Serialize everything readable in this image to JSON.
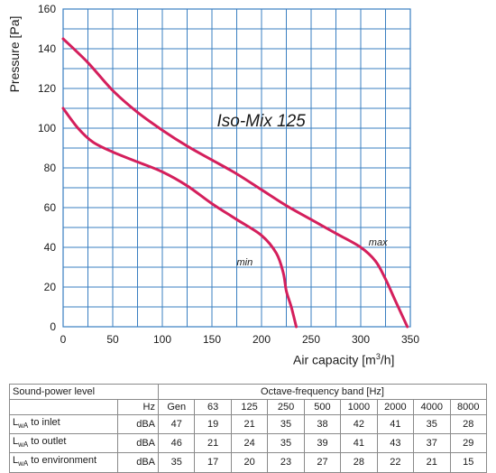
{
  "chart_data": {
    "type": "line",
    "title": "Iso-Mix 125",
    "xlabel": "Air capacity [m",
    "xlabel_sup": "3",
    "xlabel_tail": "/h]",
    "ylabel": "Pressure [Pa]",
    "xlim": [
      0,
      350
    ],
    "ylim": [
      0,
      160
    ],
    "xticks": [
      "0",
      "50",
      "100",
      "150",
      "200",
      "250",
      "300",
      "350"
    ],
    "yticks": [
      "0",
      "20",
      "40",
      "60",
      "80",
      "100",
      "120",
      "140",
      "160"
    ],
    "grid": true,
    "grid_color": "#3a7fc1",
    "line_color": "#d41f5c",
    "series": [
      {
        "name": "max",
        "points": [
          [
            0,
            145
          ],
          [
            25,
            133
          ],
          [
            50,
            119
          ],
          [
            75,
            108
          ],
          [
            100,
            99
          ],
          [
            125,
            91
          ],
          [
            150,
            84
          ],
          [
            175,
            77
          ],
          [
            200,
            69
          ],
          [
            225,
            61
          ],
          [
            250,
            54
          ],
          [
            275,
            47
          ],
          [
            300,
            40
          ],
          [
            315,
            33
          ],
          [
            325,
            24
          ],
          [
            335,
            13
          ],
          [
            347,
            0
          ]
        ]
      },
      {
        "name": "min",
        "points": [
          [
            0,
            110
          ],
          [
            15,
            100
          ],
          [
            30,
            93
          ],
          [
            50,
            88
          ],
          [
            75,
            83
          ],
          [
            100,
            78
          ],
          [
            125,
            71
          ],
          [
            150,
            62
          ],
          [
            175,
            54
          ],
          [
            200,
            46
          ],
          [
            215,
            37
          ],
          [
            222,
            27
          ],
          [
            225,
            18
          ],
          [
            230,
            10
          ],
          [
            235,
            0
          ]
        ]
      }
    ],
    "annotations": [
      {
        "text": "max",
        "x": 308,
        "y": 41
      },
      {
        "text": "min",
        "x": 175,
        "y": 31
      },
      {
        "text": "Iso-Mix 125",
        "x": 155,
        "y": 101
      }
    ]
  },
  "table": {
    "head1": [
      "Sound-power level",
      "Octave-frequency band [Hz]"
    ],
    "head2": [
      "Hz",
      "Gen",
      "63",
      "125",
      "250",
      "500",
      "1000",
      "2000",
      "4000",
      "8000"
    ],
    "rows": [
      {
        "label": "L",
        "sub": "wA",
        "text": " to inlet",
        "unit": "dBA",
        "values": [
          "47",
          "19",
          "21",
          "35",
          "38",
          "42",
          "41",
          "35",
          "28"
        ]
      },
      {
        "label": "L",
        "sub": "wA",
        "text": " to outlet",
        "unit": "dBA",
        "values": [
          "46",
          "21",
          "24",
          "35",
          "39",
          "41",
          "43",
          "37",
          "29"
        ]
      },
      {
        "label": "L",
        "sub": "wA",
        "text": " to environment",
        "unit": "dBA",
        "values": [
          "35",
          "17",
          "20",
          "23",
          "27",
          "28",
          "22",
          "21",
          "15"
        ]
      }
    ]
  }
}
